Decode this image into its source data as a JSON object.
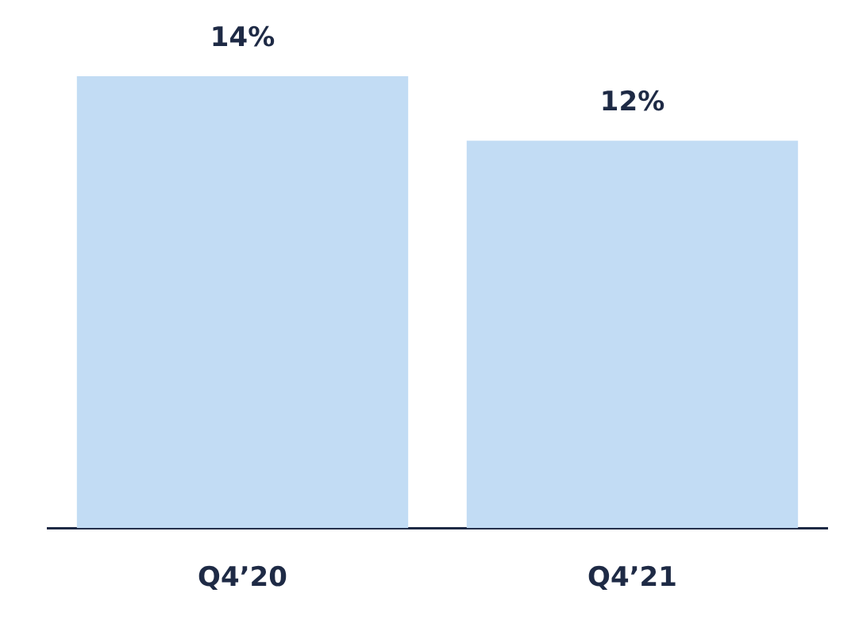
{
  "chart_data": {
    "type": "bar",
    "categories": [
      "Q4’20",
      "Q4’21"
    ],
    "values": [
      14,
      12
    ],
    "color": "#c2dcf4",
    "value_labels": [
      "14%",
      "12%"
    ],
    "ylim": [
      0,
      14
    ],
    "tick_labels": "x",
    "grid": false,
    "legend": false
  }
}
